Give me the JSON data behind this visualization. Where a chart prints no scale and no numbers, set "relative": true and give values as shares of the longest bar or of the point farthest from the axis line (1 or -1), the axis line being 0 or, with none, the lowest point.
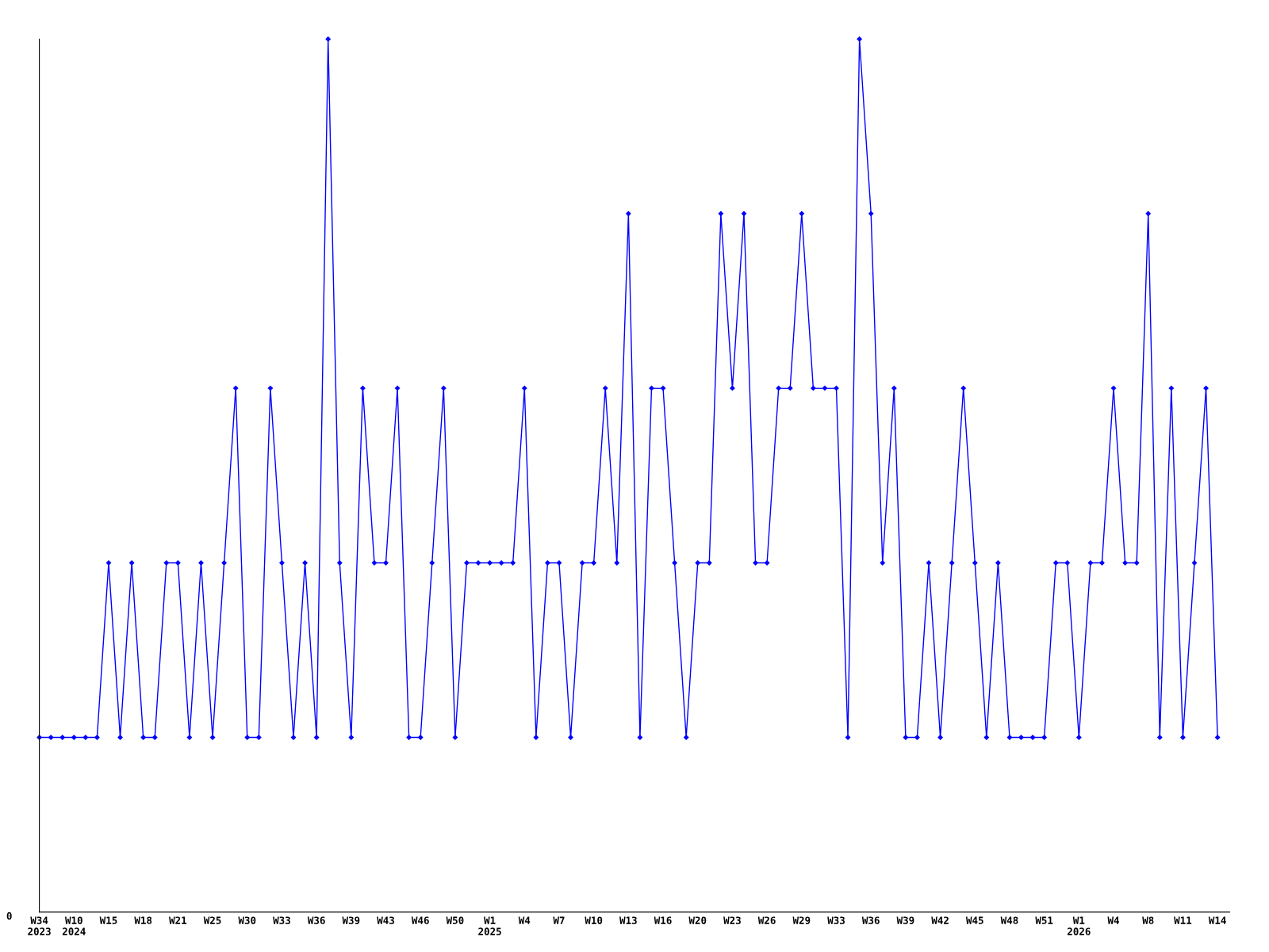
{
  "chart_data": {
    "type": "line",
    "relative": true,
    "categories": [
      "W34\n2023",
      null,
      null,
      "W10\n2024",
      null,
      null,
      "W15",
      null,
      null,
      "W18",
      null,
      null,
      "W21",
      null,
      null,
      "W25",
      null,
      null,
      "W30",
      null,
      null,
      "W33",
      null,
      null,
      "W36",
      null,
      null,
      "W39",
      null,
      null,
      "W43",
      null,
      null,
      "W46",
      null,
      null,
      "W50",
      null,
      null,
      "W1\n2025",
      null,
      null,
      "W4",
      null,
      null,
      "W7",
      null,
      null,
      "W10",
      null,
      null,
      "W13",
      null,
      null,
      "W16",
      null,
      null,
      "W20",
      null,
      null,
      "W23",
      null,
      null,
      "W26",
      null,
      null,
      "W29",
      null,
      null,
      "W33",
      null,
      null,
      "W36",
      null,
      null,
      "W39",
      null,
      null,
      "W42",
      null,
      null,
      "W45",
      null,
      null,
      "W48",
      null,
      null,
      "W51",
      null,
      null,
      "W1\n2026",
      null,
      null,
      "W4",
      null,
      null,
      "W8",
      null,
      null,
      "W11",
      null,
      null,
      "W14"
    ],
    "series": [
      {
        "color": "#0000ff",
        "values": [
          0.2,
          0.2,
          0.2,
          0.2,
          0.2,
          0.2,
          0.4,
          0.2,
          0.4,
          0.2,
          0.2,
          0.4,
          0.4,
          0.2,
          0.4,
          0.2,
          0.4,
          0.6,
          0.2,
          0.2,
          0.6,
          0.4,
          0.2,
          0.4,
          0.2,
          1.0,
          0.4,
          0.2,
          0.6,
          0.4,
          0.4,
          0.6,
          0.2,
          0.2,
          0.4,
          0.6,
          0.2,
          0.4,
          0.4,
          0.4,
          0.4,
          0.4,
          0.6,
          0.2,
          0.4,
          0.4,
          0.2,
          0.4,
          0.4,
          0.6,
          0.4,
          0.8,
          0.2,
          0.6,
          0.6,
          0.4,
          0.2,
          0.4,
          0.4,
          0.8,
          0.6,
          0.8,
          0.4,
          0.4,
          0.6,
          0.6,
          0.8,
          0.6,
          0.6,
          0.6,
          0.2,
          1.0,
          0.8,
          0.4,
          0.6,
          0.2,
          0.2,
          0.4,
          0.2,
          0.4,
          0.6,
          0.4,
          0.2,
          0.4,
          0.2,
          0.2,
          0.2,
          0.2,
          0.4,
          0.4,
          0.2,
          0.4,
          0.4,
          0.6,
          0.4,
          0.4,
          0.8,
          0.2,
          0.6,
          0.2,
          0.4,
          0.6,
          0.2
        ]
      }
    ],
    "annotations": [
      "0"
    ],
    "marker": "diamond",
    "line_style": "solid",
    "grid": false,
    "legend": false
  }
}
